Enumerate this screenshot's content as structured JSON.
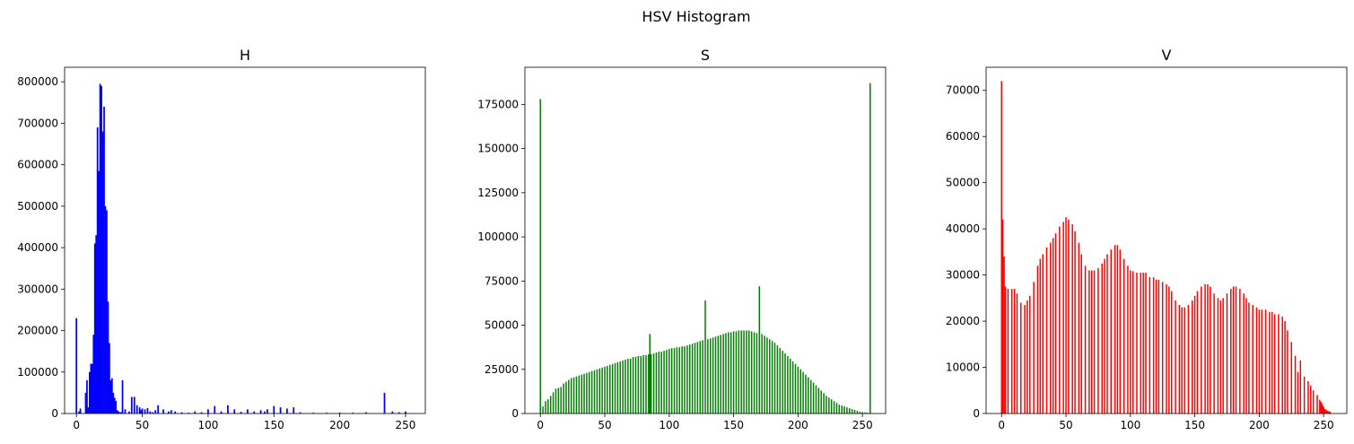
{
  "figure": {
    "title": "HSV Histogram"
  },
  "chart_data": [
    {
      "type": "bar",
      "title": "H",
      "color": "#0000ff",
      "xlim": [
        -9,
        265
      ],
      "ylim": [
        0,
        835000
      ],
      "xticks": [
        0,
        50,
        100,
        150,
        200,
        250
      ],
      "yticks": [
        0,
        100000,
        200000,
        300000,
        400000,
        500000,
        600000,
        700000,
        800000
      ],
      "x": [
        0,
        2,
        3,
        7,
        8,
        9,
        10,
        11,
        12,
        13,
        14,
        15,
        16,
        17,
        18,
        19,
        20,
        21,
        22,
        23,
        24,
        25,
        26,
        27,
        28,
        29,
        30,
        31,
        32,
        33,
        34,
        35,
        37,
        40,
        42,
        44,
        46,
        48,
        49,
        50,
        52,
        54,
        56,
        58,
        60,
        62,
        66,
        70,
        72,
        75,
        80,
        85,
        90,
        95,
        100,
        105,
        110,
        115,
        120,
        125,
        130,
        135,
        140,
        143,
        145,
        150,
        155,
        160,
        165,
        170,
        180,
        190,
        200,
        210,
        220,
        234,
        240,
        245,
        250
      ],
      "values": [
        230000,
        5000,
        12000,
        50000,
        80000,
        15000,
        100000,
        120000,
        120000,
        190000,
        410000,
        430000,
        690000,
        585000,
        795000,
        790000,
        680000,
        740000,
        500000,
        490000,
        270000,
        170000,
        80000,
        85000,
        50000,
        38000,
        30000,
        8000,
        5000,
        3000,
        3000,
        80000,
        10000,
        5000,
        40000,
        40000,
        20000,
        15000,
        8000,
        12000,
        10000,
        13000,
        5000,
        3000,
        8000,
        20000,
        10000,
        5000,
        8000,
        5000,
        3000,
        2000,
        5000,
        3000,
        10000,
        18000,
        5000,
        20000,
        10000,
        4000,
        10000,
        5000,
        8000,
        5000,
        10000,
        18000,
        15000,
        12000,
        15000,
        3000,
        2000,
        2000,
        2000,
        2000,
        3000,
        50000,
        5000,
        3000,
        5000
      ]
    },
    {
      "type": "bar",
      "title": "S",
      "color": "#008000",
      "xlim": [
        -12,
        268
      ],
      "ylim": [
        0,
        196000
      ],
      "xticks": [
        0,
        50,
        100,
        150,
        200,
        250
      ],
      "yticks": [
        0,
        25000,
        50000,
        75000,
        100000,
        125000,
        150000,
        175000
      ],
      "x": [
        0,
        2,
        4,
        6,
        8,
        10,
        12,
        14,
        16,
        18,
        20,
        22,
        24,
        26,
        28,
        30,
        32,
        34,
        36,
        38,
        40,
        42,
        44,
        46,
        48,
        50,
        52,
        54,
        56,
        58,
        60,
        62,
        64,
        66,
        68,
        70,
        72,
        74,
        76,
        78,
        80,
        82,
        84,
        85,
        86,
        88,
        90,
        92,
        94,
        96,
        98,
        100,
        102,
        104,
        106,
        108,
        110,
        112,
        114,
        116,
        118,
        120,
        122,
        124,
        126,
        128,
        130,
        132,
        134,
        136,
        138,
        140,
        142,
        144,
        146,
        148,
        150,
        152,
        154,
        156,
        158,
        160,
        162,
        164,
        166,
        168,
        170,
        172,
        174,
        176,
        178,
        180,
        182,
        184,
        186,
        188,
        190,
        192,
        194,
        196,
        198,
        200,
        202,
        204,
        206,
        208,
        210,
        212,
        214,
        216,
        218,
        220,
        222,
        224,
        226,
        228,
        230,
        232,
        234,
        236,
        238,
        240,
        242,
        244,
        246,
        248,
        250,
        252,
        254,
        256
      ],
      "values": [
        178000,
        4000,
        7000,
        8000,
        10000,
        12000,
        14000,
        14500,
        15000,
        17000,
        18000,
        19000,
        20000,
        20500,
        21000,
        21500,
        22000,
        22500,
        23000,
        23500,
        24000,
        24500,
        25000,
        25500,
        26000,
        26500,
        27000,
        27500,
        28000,
        28500,
        29000,
        29500,
        30000,
        30500,
        31000,
        31000,
        32000,
        32000,
        32500,
        32500,
        33000,
        33000,
        33500,
        45000,
        33500,
        34000,
        34500,
        35000,
        35000,
        35500,
        36000,
        36500,
        37000,
        37000,
        37500,
        37500,
        38000,
        38000,
        38500,
        39000,
        39500,
        40000,
        40500,
        41000,
        41500,
        64000,
        42000,
        42500,
        43000,
        43500,
        44000,
        44500,
        45000,
        45500,
        46000,
        46000,
        46500,
        46500,
        47000,
        47000,
        47000,
        47000,
        47000,
        46500,
        46000,
        45500,
        72000,
        45000,
        44000,
        43000,
        42000,
        41000,
        40000,
        38500,
        37000,
        35500,
        34000,
        32500,
        31000,
        29500,
        28000,
        26500,
        25000,
        23500,
        22000,
        20500,
        19000,
        17500,
        16000,
        14500,
        13000,
        11500,
        10000,
        9000,
        8000,
        7000,
        6000,
        5000,
        4500,
        4000,
        3500,
        3000,
        2500,
        2000,
        1500,
        1000,
        800,
        600,
        500,
        187000
      ]
    },
    {
      "type": "bar",
      "title": "V",
      "color": "#ff0000",
      "xlim": [
        -12,
        268
      ],
      "ylim": [
        0,
        75000
      ],
      "xticks": [
        0,
        50,
        100,
        150,
        200,
        250
      ],
      "yticks": [
        0,
        10000,
        20000,
        30000,
        40000,
        50000,
        60000,
        70000
      ],
      "x": [
        0,
        1,
        2,
        3,
        5,
        8,
        10,
        12,
        15,
        18,
        20,
        22,
        25,
        28,
        30,
        32,
        35,
        38,
        40,
        42,
        45,
        48,
        50,
        52,
        55,
        57,
        60,
        62,
        65,
        68,
        70,
        72,
        75,
        78,
        80,
        82,
        85,
        88,
        90,
        92,
        95,
        98,
        100,
        102,
        105,
        108,
        110,
        112,
        115,
        118,
        120,
        122,
        125,
        128,
        130,
        132,
        135,
        138,
        140,
        142,
        145,
        148,
        150,
        152,
        155,
        158,
        160,
        162,
        165,
        168,
        170,
        172,
        175,
        178,
        180,
        182,
        185,
        188,
        190,
        192,
        195,
        198,
        200,
        202,
        205,
        208,
        210,
        212,
        215,
        218,
        220,
        222,
        225,
        228,
        230,
        232,
        235,
        238,
        240,
        242,
        245,
        247,
        248,
        249,
        250,
        251,
        252,
        253,
        254,
        255
      ],
      "values": [
        72000,
        42000,
        34000,
        27500,
        27000,
        27000,
        27000,
        26000,
        24000,
        23500,
        24500,
        25500,
        28500,
        32000,
        33500,
        34500,
        36000,
        37000,
        38000,
        39000,
        40500,
        41500,
        42500,
        42000,
        41000,
        39500,
        37000,
        34500,
        32000,
        31000,
        31000,
        31000,
        31500,
        32500,
        33500,
        34500,
        35500,
        36500,
        36500,
        35500,
        33500,
        32000,
        31000,
        30800,
        30500,
        30500,
        30500,
        30500,
        29500,
        29500,
        29000,
        29000,
        28500,
        28000,
        27500,
        26500,
        24500,
        23500,
        23000,
        23000,
        23500,
        24500,
        25500,
        26500,
        27500,
        28000,
        28000,
        27500,
        26000,
        25000,
        24500,
        25000,
        26000,
        27000,
        27500,
        27500,
        27000,
        26000,
        25000,
        24000,
        23500,
        23000,
        22500,
        22500,
        22500,
        22000,
        22000,
        21500,
        21500,
        21000,
        20000,
        18000,
        15500,
        12500,
        9000,
        11500,
        8000,
        7000,
        6000,
        5000,
        4000,
        3000,
        2500,
        2000,
        1500,
        1000,
        800,
        600,
        500,
        400
      ]
    }
  ]
}
